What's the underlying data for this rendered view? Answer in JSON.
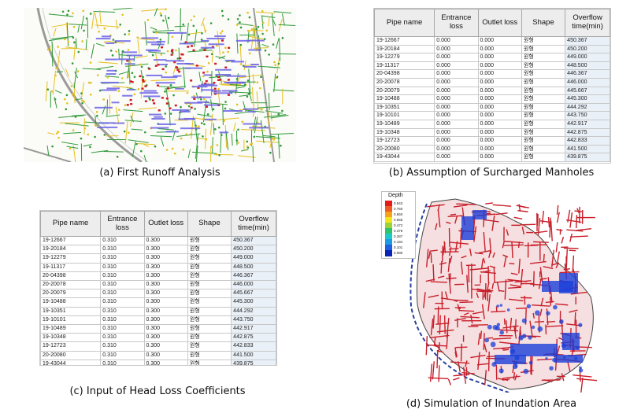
{
  "captions": {
    "a": "(a) First Runoff Analysis",
    "b": "(b) Assumption of Surcharged Manholes",
    "c": "(c) Input of Head Loss Coefficients",
    "d": "(d) Simulation of Inundation Area"
  },
  "table_headers": [
    "Pipe name",
    "Entrance loss",
    "Outlet loss",
    "Shape",
    "Overflow time(min)"
  ],
  "table_b": {
    "rows": [
      [
        "19-12667",
        "0.000",
        "0.000",
        "원형",
        "450.367"
      ],
      [
        "19-20184",
        "0.000",
        "0.000",
        "원형",
        "450.200"
      ],
      [
        "19-12279",
        "0.000",
        "0.000",
        "원형",
        "449.000"
      ],
      [
        "19-11317",
        "0.000",
        "0.000",
        "원형",
        "448.500"
      ],
      [
        "20-04398",
        "0.000",
        "0.000",
        "원형",
        "446.367"
      ],
      [
        "20-20078",
        "0.000",
        "0.000",
        "원형",
        "446.000"
      ],
      [
        "20-20079",
        "0.000",
        "0.000",
        "원형",
        "445.667"
      ],
      [
        "19-10488",
        "0.000",
        "0.000",
        "원형",
        "445.300"
      ],
      [
        "19-10351",
        "0.000",
        "0.000",
        "원형",
        "444.292"
      ],
      [
        "19-10101",
        "0.000",
        "0.000",
        "원형",
        "443.750"
      ],
      [
        "19-10489",
        "0.000",
        "0.000",
        "원형",
        "442.917"
      ],
      [
        "19-10348",
        "0.000",
        "0.000",
        "원형",
        "442.875"
      ],
      [
        "19-12723",
        "0.000",
        "0.000",
        "원형",
        "442.833"
      ],
      [
        "20-20080",
        "0.000",
        "0.000",
        "원형",
        "441.500"
      ],
      [
        "19-43044",
        "0.000",
        "0.000",
        "원형",
        "439.875"
      ]
    ]
  },
  "table_c": {
    "rows": [
      [
        "19-12667",
        "0.310",
        "0.300",
        "원형",
        "450.367"
      ],
      [
        "19-20184",
        "0.310",
        "0.300",
        "원형",
        "450.200"
      ],
      [
        "19-12279",
        "0.310",
        "0.300",
        "원형",
        "449.000"
      ],
      [
        "19-11317",
        "0.310",
        "0.300",
        "원형",
        "448.500"
      ],
      [
        "20-04398",
        "0.310",
        "0.300",
        "원형",
        "446.367"
      ],
      [
        "20-20078",
        "0.310",
        "0.300",
        "원형",
        "446.000"
      ],
      [
        "20-20079",
        "0.310",
        "0.300",
        "원형",
        "445.667"
      ],
      [
        "19-10488",
        "0.310",
        "0.300",
        "원형",
        "445.300"
      ],
      [
        "19-10351",
        "0.310",
        "0.300",
        "원형",
        "444.292"
      ],
      [
        "19-10101",
        "0.310",
        "0.300",
        "원형",
        "443.750"
      ],
      [
        "19-10489",
        "0.310",
        "0.300",
        "원형",
        "442.917"
      ],
      [
        "19-10348",
        "0.310",
        "0.300",
        "원형",
        "442.875"
      ],
      [
        "19-12723",
        "0.310",
        "0.300",
        "원형",
        "442.833"
      ],
      [
        "20-20080",
        "0.310",
        "0.300",
        "원형",
        "441.500"
      ],
      [
        "19-43044",
        "0.310",
        "0.300",
        "원형",
        "439.875"
      ]
    ]
  },
  "legend": {
    "title": "Depth",
    "levels": [
      {
        "value": "0.943",
        "color": "#e41a1c"
      },
      {
        "value": "0.760",
        "color": "#f05a28"
      },
      {
        "value": "0.650",
        "color": "#f7a21b"
      },
      {
        "value": "0.565",
        "color": "#f3e51b"
      },
      {
        "value": "0.472",
        "color": "#9bd43a"
      },
      {
        "value": "0.378",
        "color": "#2fc36b"
      },
      {
        "value": "0.287",
        "color": "#1cc9c9"
      },
      {
        "value": "0.194",
        "color": "#1a9de2"
      },
      {
        "value": "0.101",
        "color": "#1f5fe0"
      },
      {
        "value": "0.080",
        "color": "#0b24b8"
      }
    ]
  },
  "colors": {
    "map_background": "#fbfbf7",
    "network_green": "#2f9a3a",
    "network_yellow": "#e6c020",
    "surcharge_red": "#d01820",
    "flood_label_blue": "#6a62e6",
    "inundation_red": "#c81f2a",
    "inundation_blue": "#1b3ed8"
  }
}
